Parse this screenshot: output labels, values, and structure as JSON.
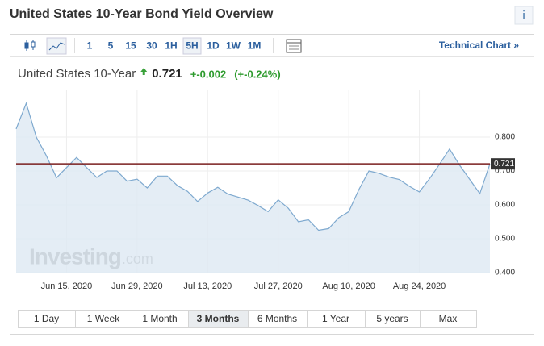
{
  "page_title": "United States 10-Year Bond Yield Overview",
  "info_icon": "i",
  "toolbar": {
    "intervals": [
      "1",
      "5",
      "15",
      "30",
      "1H",
      "5H",
      "1D",
      "1W",
      "1M"
    ],
    "selected": 5,
    "technical_chart": "Technical Chart »"
  },
  "quote": {
    "name": "United States 10-Year",
    "price": "0.721",
    "change": "+-0.002",
    "change_pct": "(+-0.24%)"
  },
  "watermark": {
    "brand": "Investing",
    "suffix": ".com"
  },
  "ranges": {
    "buttons": [
      "1 Day",
      "1 Week",
      "1 Month",
      "3 Months",
      "6 Months",
      "1 Year",
      "5 years",
      "Max"
    ],
    "selected": 3
  },
  "chart_data": {
    "type": "area",
    "color": "#7ea9cf",
    "fill": "#dde8f2",
    "grid": true,
    "x": [
      "2020-06-05",
      "2020-06-07",
      "2020-06-09",
      "2020-06-11",
      "2020-06-13",
      "2020-06-15",
      "2020-06-17",
      "2020-06-19",
      "2020-06-21",
      "2020-06-23",
      "2020-06-25",
      "2020-06-27",
      "2020-06-29",
      "2020-07-01",
      "2020-07-03",
      "2020-07-05",
      "2020-07-07",
      "2020-07-09",
      "2020-07-11",
      "2020-07-13",
      "2020-07-15",
      "2020-07-17",
      "2020-07-19",
      "2020-07-21",
      "2020-07-23",
      "2020-07-25",
      "2020-07-27",
      "2020-07-29",
      "2020-07-31",
      "2020-08-02",
      "2020-08-04",
      "2020-08-06",
      "2020-08-08",
      "2020-08-10",
      "2020-08-12",
      "2020-08-14",
      "2020-08-16",
      "2020-08-18",
      "2020-08-20",
      "2020-08-22",
      "2020-08-24",
      "2020-08-26",
      "2020-08-28",
      "2020-08-30",
      "2020-09-01",
      "2020-09-03",
      "2020-09-05",
      "2020-09-07"
    ],
    "values": [
      0.824,
      0.9,
      0.8,
      0.745,
      0.68,
      0.71,
      0.74,
      0.71,
      0.681,
      0.7,
      0.7,
      0.67,
      0.676,
      0.65,
      0.685,
      0.685,
      0.657,
      0.64,
      0.61,
      0.635,
      0.652,
      0.632,
      0.623,
      0.614,
      0.598,
      0.58,
      0.615,
      0.59,
      0.55,
      0.556,
      0.525,
      0.53,
      0.562,
      0.58,
      0.645,
      0.7,
      0.693,
      0.682,
      0.675,
      0.655,
      0.638,
      0.677,
      0.72,
      0.765,
      0.717,
      0.675,
      0.633,
      0.721
    ],
    "xlim": [
      "2020-06-05",
      "2020-09-07"
    ],
    "xticks": [
      {
        "value": "2020-06-15",
        "label": "Jun 15, 2020"
      },
      {
        "value": "2020-06-29",
        "label": "Jun 29, 2020"
      },
      {
        "value": "2020-07-13",
        "label": "Jul 13, 2020"
      },
      {
        "value": "2020-07-27",
        "label": "Jul 27, 2020"
      },
      {
        "value": "2020-08-10",
        "label": "Aug 10, 2020"
      },
      {
        "value": "2020-08-24",
        "label": "Aug 24, 2020"
      }
    ],
    "ylim": [
      0.4,
      0.94
    ],
    "yticks": [
      {
        "value": 0.4,
        "label": "0.400"
      },
      {
        "value": 0.5,
        "label": "0.500"
      },
      {
        "value": 0.6,
        "label": "0.600"
      },
      {
        "value": 0.7,
        "label": "0.700"
      },
      {
        "value": 0.8,
        "label": "0.800"
      }
    ],
    "last": {
      "value": 0.721,
      "label": "0.721",
      "color": "#7a1f1f"
    }
  }
}
